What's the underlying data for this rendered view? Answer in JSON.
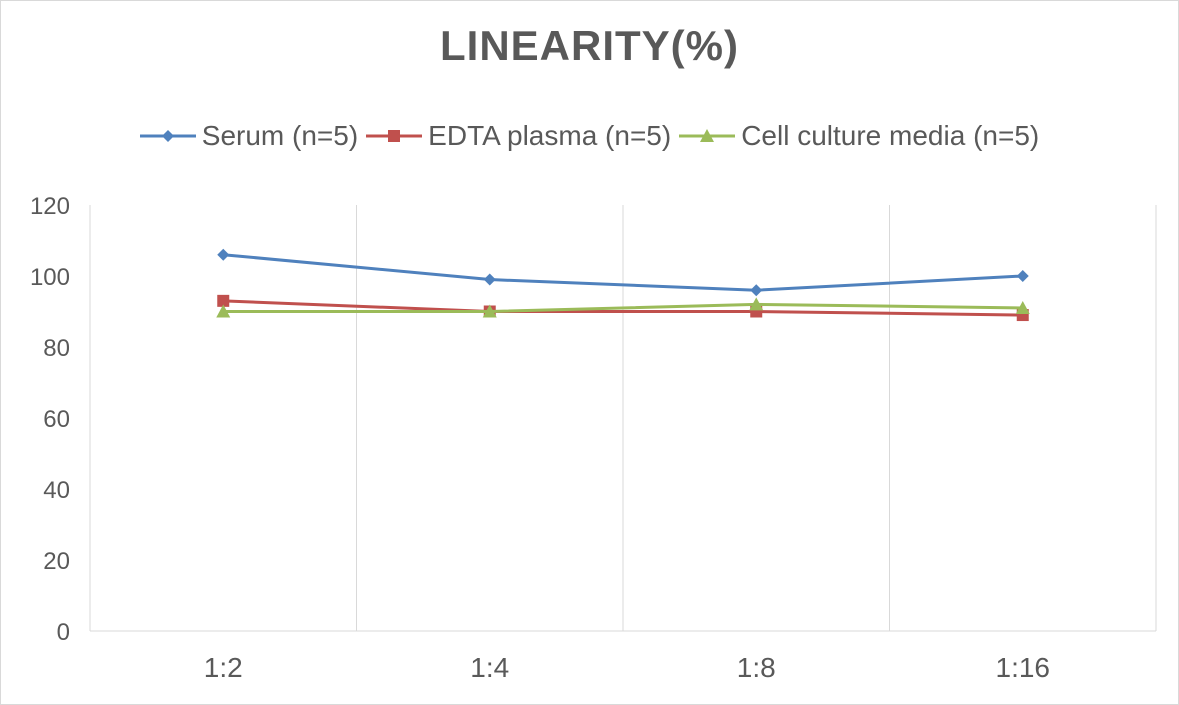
{
  "chart_data": {
    "type": "line",
    "title": "LINEARITY(%)",
    "categories": [
      "1:2",
      "1:4",
      "1:8",
      "1:16"
    ],
    "ylim": [
      0,
      120
    ],
    "yticks": [
      0,
      20,
      40,
      60,
      80,
      100,
      120
    ],
    "grid": "vertical",
    "legend_position": "top",
    "series": [
      {
        "name": "Serum (n=5)",
        "values": [
          106,
          99,
          96,
          100
        ],
        "color": "#4f81bd",
        "marker": "diamond"
      },
      {
        "name": "EDTA plasma (n=5)",
        "values": [
          93,
          90,
          90,
          89
        ],
        "color": "#c0504d",
        "marker": "square"
      },
      {
        "name": "Cell culture media (n=5)",
        "values": [
          90,
          90,
          92,
          91
        ],
        "color": "#9bbb59",
        "marker": "triangle"
      }
    ]
  }
}
